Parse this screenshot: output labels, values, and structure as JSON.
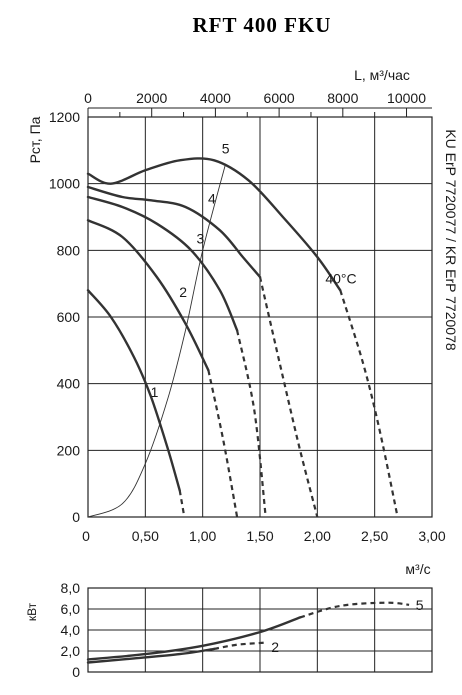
{
  "page": {
    "title": "RFT 400 FKU",
    "side_label": "KU ErP 7720077 / KR ErP 7720078",
    "unit_top": "L, м³/час",
    "unit_bottom": "м³/с",
    "unit_left": "Рст, Па",
    "unit_power": "кВт",
    "temp_label": "40°C"
  },
  "chart_data": [
    {
      "type": "line",
      "title": "RFT 400 FKU",
      "xlabel": "м³/с",
      "ylabel": "Рст, Па",
      "x2label": "L, м³/час",
      "xlim": [
        0,
        3.0
      ],
      "ylim": [
        0,
        1200
      ],
      "x2lim": [
        0,
        10800
      ],
      "xticks": [
        "0",
        "0,50",
        "1,00",
        "1,50",
        "2,00",
        "2,50",
        "3,00"
      ],
      "yticks": [
        "0",
        "200",
        "400",
        "600",
        "800",
        "1000",
        "1200"
      ],
      "x2ticks": [
        "0",
        "2000",
        "4000",
        "6000",
        "8000",
        "10000"
      ],
      "grid": true,
      "series": [
        {
          "name": "1",
          "solid": [
            [
              0,
              680
            ],
            [
              0.2,
              600
            ],
            [
              0.4,
              480
            ],
            [
              0.55,
              360
            ],
            [
              0.7,
              200
            ],
            [
              0.8,
              80
            ]
          ],
          "dashed": [
            [
              0.8,
              80
            ],
            [
              0.84,
              0
            ]
          ]
        },
        {
          "name": "2",
          "solid": [
            [
              0,
              890
            ],
            [
              0.3,
              840
            ],
            [
              0.6,
              720
            ],
            [
              0.85,
              580
            ],
            [
              1.05,
              440
            ]
          ],
          "dashed": [
            [
              1.05,
              440
            ],
            [
              1.18,
              230
            ],
            [
              1.3,
              0
            ]
          ]
        },
        {
          "name": "3",
          "solid": [
            [
              0,
              960
            ],
            [
              0.3,
              930
            ],
            [
              0.6,
              880
            ],
            [
              0.9,
              800
            ],
            [
              1.15,
              680
            ],
            [
              1.3,
              560
            ]
          ],
          "dashed": [
            [
              1.3,
              560
            ],
            [
              1.45,
              320
            ],
            [
              1.55,
              0
            ]
          ]
        },
        {
          "name": "4",
          "solid": [
            [
              0,
              990
            ],
            [
              0.3,
              960
            ],
            [
              0.55,
              950
            ],
            [
              0.85,
              930
            ],
            [
              1.15,
              860
            ],
            [
              1.35,
              780
            ],
            [
              1.5,
              720
            ]
          ],
          "dashed": [
            [
              1.5,
              720
            ],
            [
              1.7,
              420
            ],
            [
              1.85,
              200
            ],
            [
              2.0,
              0
            ]
          ]
        },
        {
          "name": "5",
          "solid": [
            [
              0,
              1030
            ],
            [
              0.2,
              1000
            ],
            [
              0.5,
              1040
            ],
            [
              0.8,
              1070
            ],
            [
              1.1,
              1070
            ],
            [
              1.4,
              1010
            ],
            [
              1.7,
              900
            ],
            [
              2.0,
              780
            ],
            [
              2.2,
              680
            ]
          ],
          "dashed": [
            [
              2.2,
              680
            ],
            [
              2.4,
              460
            ],
            [
              2.55,
              250
            ],
            [
              2.7,
              0
            ]
          ]
        }
      ],
      "system_curve": [
        [
          0,
          0
        ],
        [
          0.3,
          40
        ],
        [
          0.5,
          160
        ],
        [
          0.7,
          360
        ],
        [
          0.85,
          560
        ],
        [
          1.0,
          800
        ],
        [
          1.2,
          1060
        ]
      ],
      "curve_labels": [
        {
          "text": "1",
          "x": 0.58,
          "y": 360
        },
        {
          "text": "2",
          "x": 0.83,
          "y": 660
        },
        {
          "text": "3",
          "x": 0.98,
          "y": 820
        },
        {
          "text": "4",
          "x": 1.08,
          "y": 940
        },
        {
          "text": "5",
          "x": 1.2,
          "y": 1090
        }
      ],
      "annotations": [
        {
          "text": "40°C",
          "x": 2.07,
          "y": 700
        }
      ]
    },
    {
      "type": "line",
      "ylabel": "кВт",
      "xlim": [
        0,
        3.0
      ],
      "ylim": [
        0,
        8.0
      ],
      "yticks": [
        "0",
        "2,0",
        "4,0",
        "6,0",
        "8,0"
      ],
      "grid": true,
      "series": [
        {
          "name": "5",
          "solid": [
            [
              0,
              1.2
            ],
            [
              0.5,
              1.7
            ],
            [
              1.0,
              2.5
            ],
            [
              1.5,
              3.8
            ],
            [
              1.85,
              5.2
            ]
          ],
          "dashed": [
            [
              1.85,
              5.2
            ],
            [
              2.2,
              6.3
            ],
            [
              2.6,
              6.6
            ],
            [
              2.8,
              6.4
            ]
          ]
        },
        {
          "name": "2",
          "solid": [
            [
              0,
              0.9
            ],
            [
              0.4,
              1.3
            ],
            [
              0.8,
              1.7
            ],
            [
              1.1,
              2.2
            ]
          ],
          "dashed": [
            [
              1.1,
              2.2
            ],
            [
              1.3,
              2.6
            ],
            [
              1.55,
              2.8
            ]
          ]
        }
      ],
      "curve_labels": [
        {
          "text": "5",
          "x": 2.84,
          "y": 6.4
        },
        {
          "text": "2",
          "x": 1.58,
          "y": 2.4
        }
      ]
    }
  ]
}
